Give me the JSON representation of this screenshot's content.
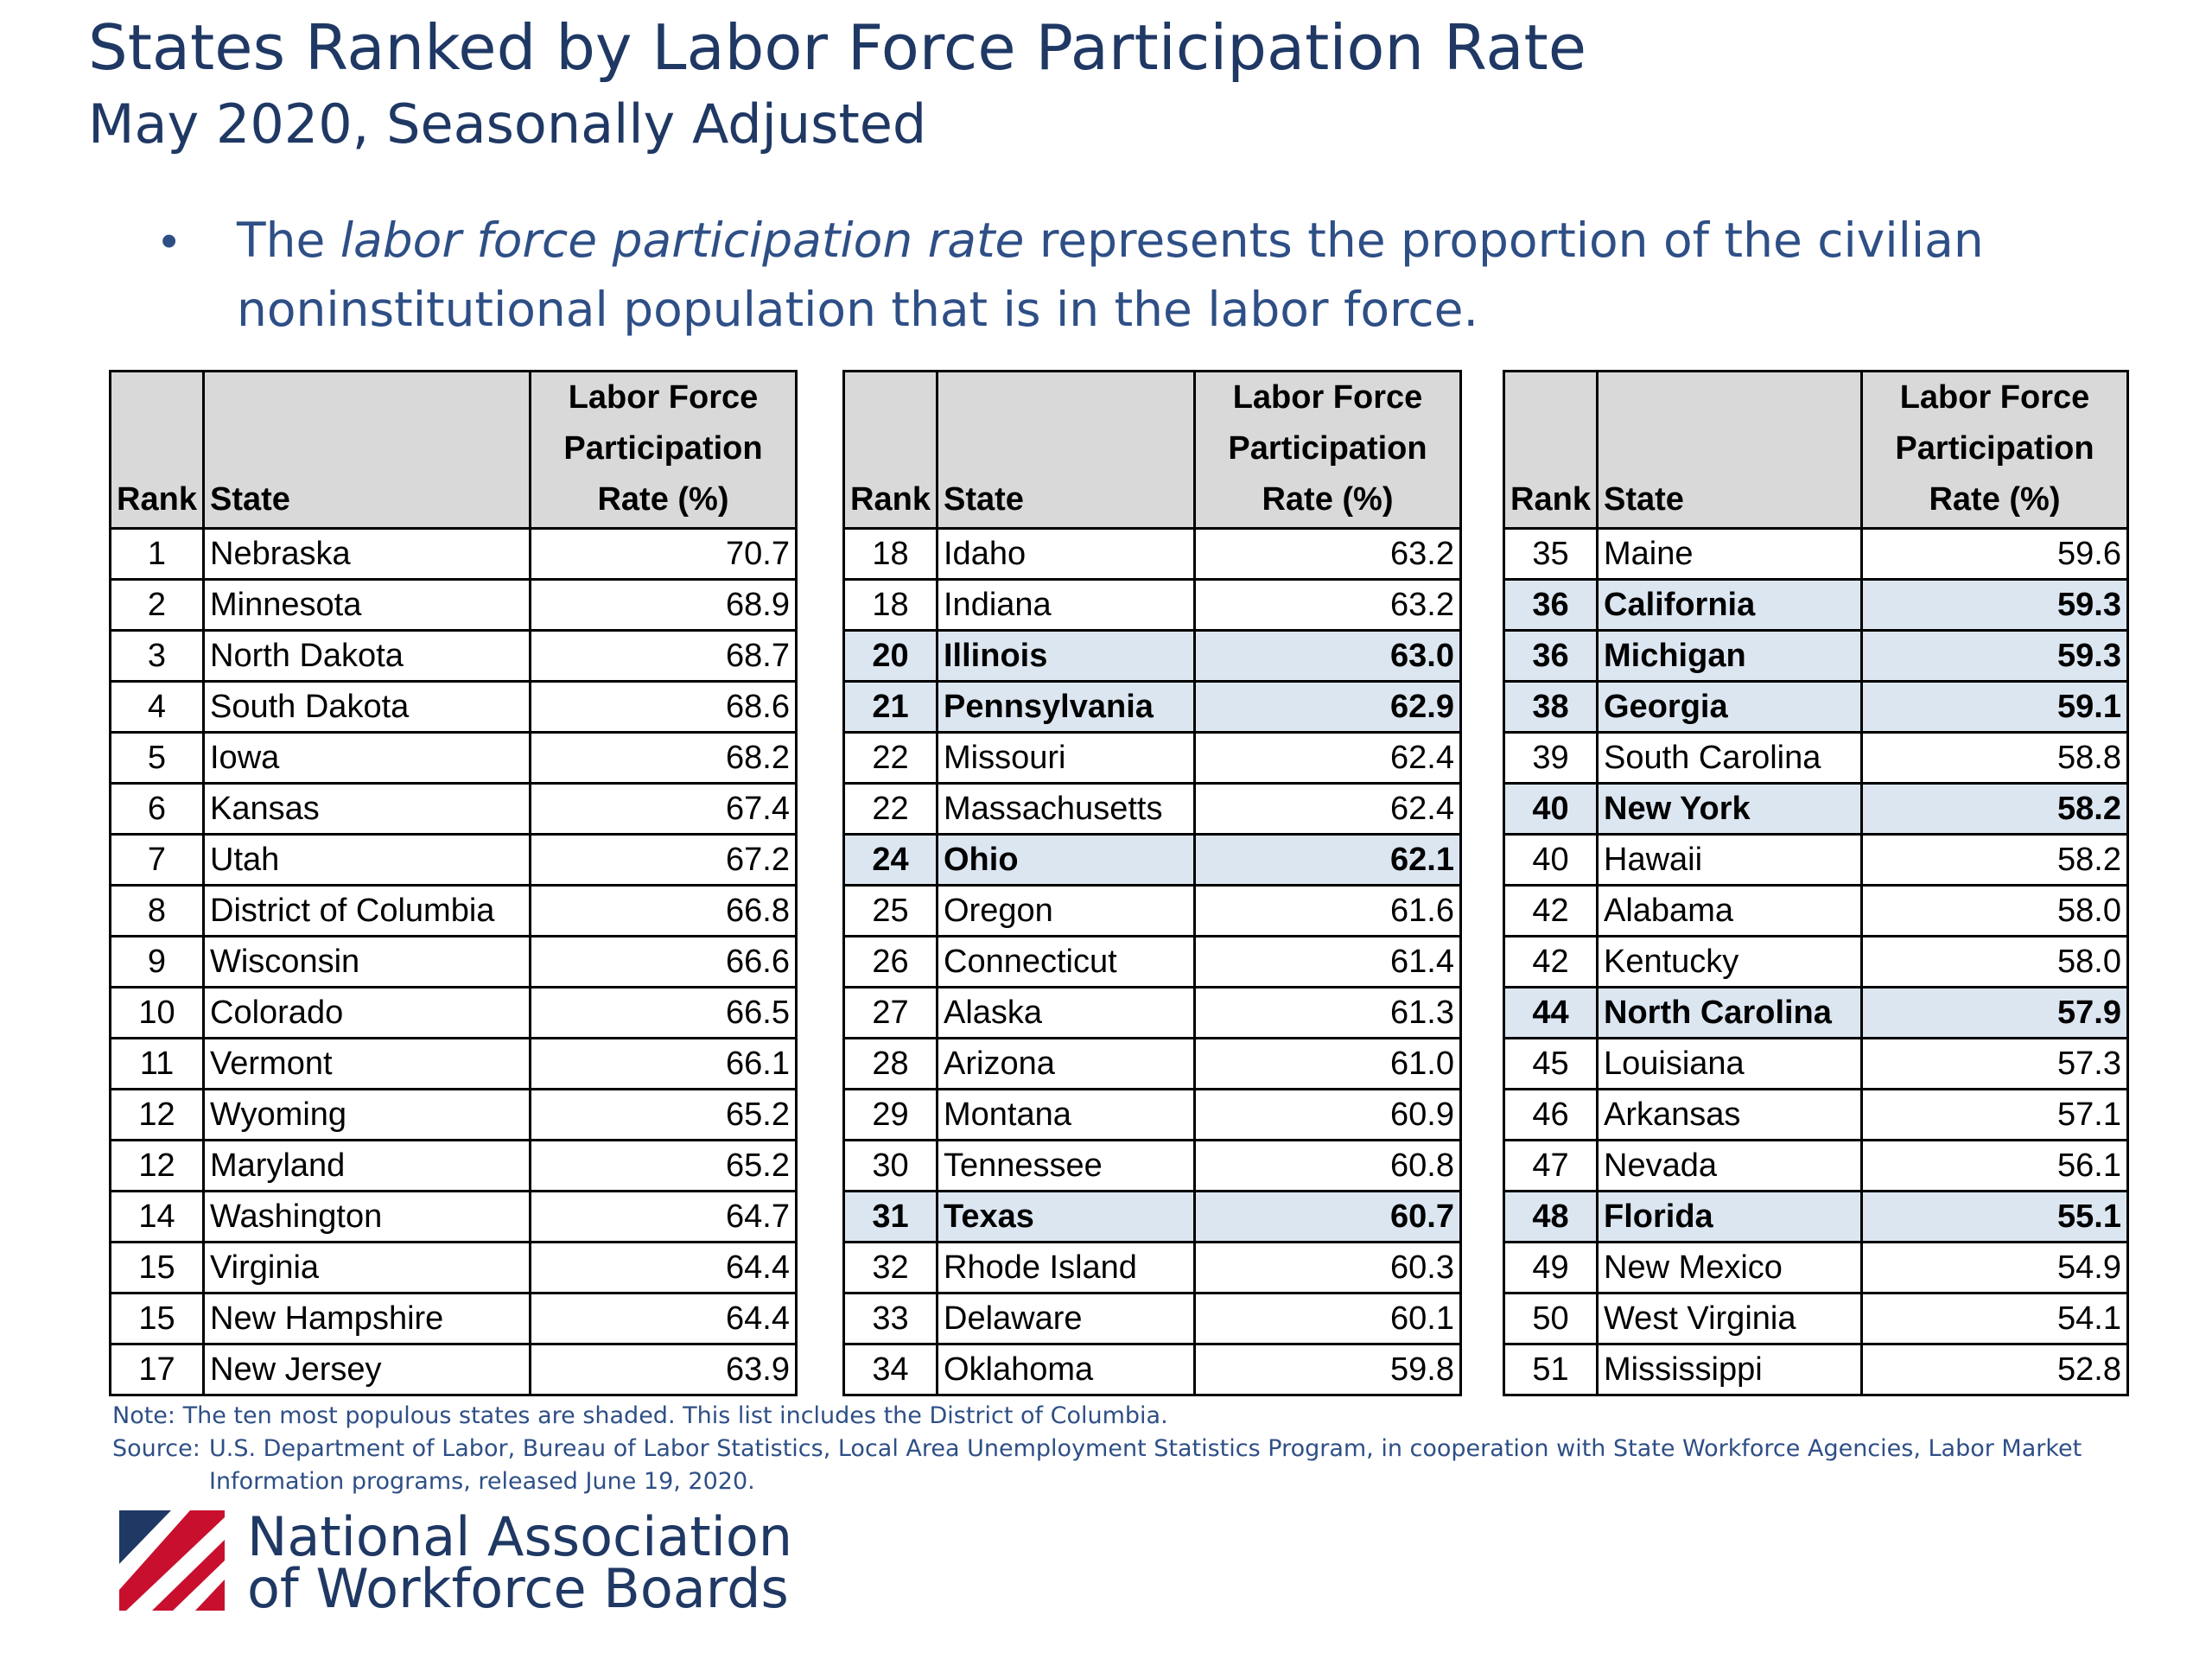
{
  "title": "States Ranked by Labor Force Participation Rate",
  "subtitle": "May 2020, Seasonally Adjusted",
  "bullet": {
    "marker": "•",
    "pre": "The ",
    "emphasis": "labor force participation rate",
    "post": " represents the proportion of the civilian noninstitutional population that is in the labor force."
  },
  "table_headers": {
    "rank": "Rank",
    "state": "State",
    "rate_line1": "Labor Force",
    "rate_line2": "Participation",
    "rate_line3": "Rate (%)"
  },
  "highlight_color": "#dce6f1",
  "header_color": "#d9d9d9",
  "tables": [
    {
      "rows": [
        {
          "rank": "1",
          "state": "Nebraska",
          "rate": "70.7",
          "highlight": false
        },
        {
          "rank": "2",
          "state": "Minnesota",
          "rate": "68.9",
          "highlight": false
        },
        {
          "rank": "3",
          "state": "North Dakota",
          "rate": "68.7",
          "highlight": false
        },
        {
          "rank": "4",
          "state": "South Dakota",
          "rate": "68.6",
          "highlight": false
        },
        {
          "rank": "5",
          "state": "Iowa",
          "rate": "68.2",
          "highlight": false
        },
        {
          "rank": "6",
          "state": "Kansas",
          "rate": "67.4",
          "highlight": false
        },
        {
          "rank": "7",
          "state": "Utah",
          "rate": "67.2",
          "highlight": false
        },
        {
          "rank": "8",
          "state": "District of Columbia",
          "rate": "66.8",
          "highlight": false
        },
        {
          "rank": "9",
          "state": "Wisconsin",
          "rate": "66.6",
          "highlight": false
        },
        {
          "rank": "10",
          "state": "Colorado",
          "rate": "66.5",
          "highlight": false
        },
        {
          "rank": "11",
          "state": "Vermont",
          "rate": "66.1",
          "highlight": false
        },
        {
          "rank": "12",
          "state": "Wyoming",
          "rate": "65.2",
          "highlight": false
        },
        {
          "rank": "12",
          "state": "Maryland",
          "rate": "65.2",
          "highlight": false
        },
        {
          "rank": "14",
          "state": "Washington",
          "rate": "64.7",
          "highlight": false
        },
        {
          "rank": "15",
          "state": "Virginia",
          "rate": "64.4",
          "highlight": false
        },
        {
          "rank": "15",
          "state": "New Hampshire",
          "rate": "64.4",
          "highlight": false
        },
        {
          "rank": "17",
          "state": "New Jersey",
          "rate": "63.9",
          "highlight": false
        }
      ]
    },
    {
      "rows": [
        {
          "rank": "18",
          "state": "Idaho",
          "rate": "63.2",
          "highlight": false
        },
        {
          "rank": "18",
          "state": "Indiana",
          "rate": "63.2",
          "highlight": false
        },
        {
          "rank": "20",
          "state": "Illinois",
          "rate": "63.0",
          "highlight": true
        },
        {
          "rank": "21",
          "state": "Pennsylvania",
          "rate": "62.9",
          "highlight": true
        },
        {
          "rank": "22",
          "state": "Missouri",
          "rate": "62.4",
          "highlight": false
        },
        {
          "rank": "22",
          "state": "Massachusetts",
          "rate": "62.4",
          "highlight": false
        },
        {
          "rank": "24",
          "state": "Ohio",
          "rate": "62.1",
          "highlight": true
        },
        {
          "rank": "25",
          "state": "Oregon",
          "rate": "61.6",
          "highlight": false
        },
        {
          "rank": "26",
          "state": "Connecticut",
          "rate": "61.4",
          "highlight": false
        },
        {
          "rank": "27",
          "state": "Alaska",
          "rate": "61.3",
          "highlight": false
        },
        {
          "rank": "28",
          "state": "Arizona",
          "rate": "61.0",
          "highlight": false
        },
        {
          "rank": "29",
          "state": "Montana",
          "rate": "60.9",
          "highlight": false
        },
        {
          "rank": "30",
          "state": "Tennessee",
          "rate": "60.8",
          "highlight": false
        },
        {
          "rank": "31",
          "state": "Texas",
          "rate": "60.7",
          "highlight": true
        },
        {
          "rank": "32",
          "state": "Rhode Island",
          "rate": "60.3",
          "highlight": false
        },
        {
          "rank": "33",
          "state": "Delaware",
          "rate": "60.1",
          "highlight": false
        },
        {
          "rank": "34",
          "state": "Oklahoma",
          "rate": "59.8",
          "highlight": false
        }
      ]
    },
    {
      "rows": [
        {
          "rank": "35",
          "state": "Maine",
          "rate": "59.6",
          "highlight": false
        },
        {
          "rank": "36",
          "state": "California",
          "rate": "59.3",
          "highlight": true
        },
        {
          "rank": "36",
          "state": "Michigan",
          "rate": "59.3",
          "highlight": true
        },
        {
          "rank": "38",
          "state": "Georgia",
          "rate": "59.1",
          "highlight": true
        },
        {
          "rank": "39",
          "state": "South Carolina",
          "rate": "58.8",
          "highlight": false
        },
        {
          "rank": "40",
          "state": "New York",
          "rate": "58.2",
          "highlight": true
        },
        {
          "rank": "40",
          "state": "Hawaii",
          "rate": "58.2",
          "highlight": false
        },
        {
          "rank": "42",
          "state": "Alabama",
          "rate": "58.0",
          "highlight": false
        },
        {
          "rank": "42",
          "state": "Kentucky",
          "rate": "58.0",
          "highlight": false
        },
        {
          "rank": "44",
          "state": "North Carolina",
          "rate": "57.9",
          "highlight": true
        },
        {
          "rank": "45",
          "state": "Louisiana",
          "rate": "57.3",
          "highlight": false
        },
        {
          "rank": "46",
          "state": "Arkansas",
          "rate": "57.1",
          "highlight": false
        },
        {
          "rank": "47",
          "state": "Nevada",
          "rate": "56.1",
          "highlight": false
        },
        {
          "rank": "48",
          "state": "Florida",
          "rate": "55.1",
          "highlight": true
        },
        {
          "rank": "49",
          "state": "New Mexico",
          "rate": "54.9",
          "highlight": false
        },
        {
          "rank": "50",
          "state": "West Virginia",
          "rate": "54.1",
          "highlight": false
        },
        {
          "rank": "51",
          "state": "Mississippi",
          "rate": "52.8",
          "highlight": false
        }
      ]
    }
  ],
  "footer": {
    "note": "Note:  The ten most populous states are shaded.  This list includes the District of Columbia.",
    "source_label": "Source:",
    "source_line1": "U.S. Department of Labor, Bureau of Labor Statistics, Local Area Unemployment Statistics Program, in cooperation with State Workforce Agencies, Labor Market",
    "source_line2": "Information programs, released June 19, 2020."
  },
  "logo": {
    "line1": "National Association",
    "line2": "of Workforce Boards",
    "icon": "stripes-logo-icon",
    "colors": {
      "red": "#c8102e",
      "navy": "#1f3864"
    }
  }
}
